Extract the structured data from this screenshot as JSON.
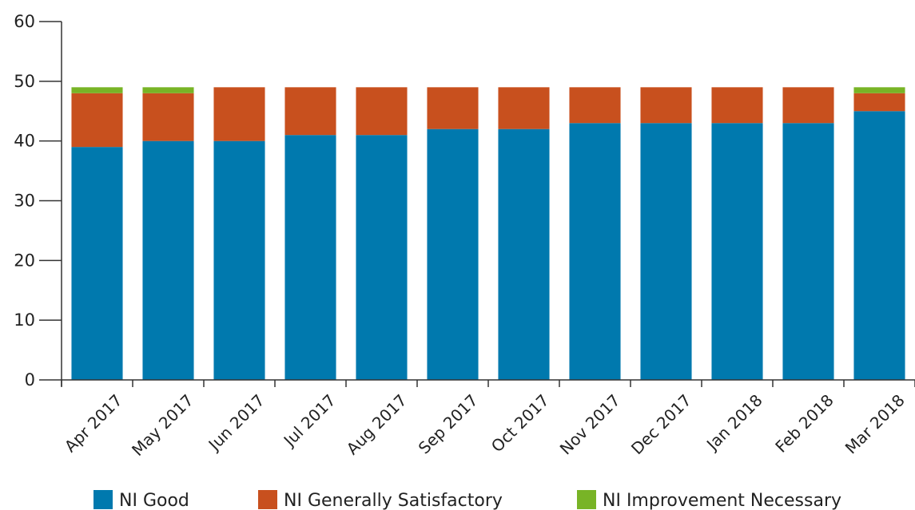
{
  "chart_data": {
    "type": "bar",
    "stacked": true,
    "categories": [
      "Apr 2017",
      "May 2017",
      "Jun 2017",
      "Jul 2017",
      "Aug 2017",
      "Sep 2017",
      "Oct 2017",
      "Nov 2017",
      "Dec 2017",
      "Jan 2018",
      "Feb 2018",
      "Mar 2018"
    ],
    "series": [
      {
        "name": "NI Good",
        "color": "#0079ae",
        "values": [
          39,
          40,
          40,
          41,
          41,
          42,
          42,
          43,
          43,
          43,
          43,
          45
        ]
      },
      {
        "name": "NI Generally Satisfactory",
        "color": "#c8501e",
        "values": [
          9,
          8,
          9,
          8,
          8,
          7,
          7,
          6,
          6,
          6,
          6,
          3
        ]
      },
      {
        "name": "NI Improvement Necessary",
        "color": "#78b426",
        "values": [
          1,
          1,
          0,
          0,
          0,
          0,
          0,
          0,
          0,
          0,
          0,
          1
        ]
      }
    ],
    "ylim": [
      0,
      60
    ],
    "yticks": [
      0,
      10,
      20,
      30,
      40,
      50,
      60
    ],
    "ytick_labels": [
      "0",
      "10",
      "20",
      "30",
      "40",
      "50",
      "60"
    ],
    "title": "",
    "xlabel": "",
    "ylabel": "",
    "grid": false,
    "legend_position": "bottom"
  }
}
